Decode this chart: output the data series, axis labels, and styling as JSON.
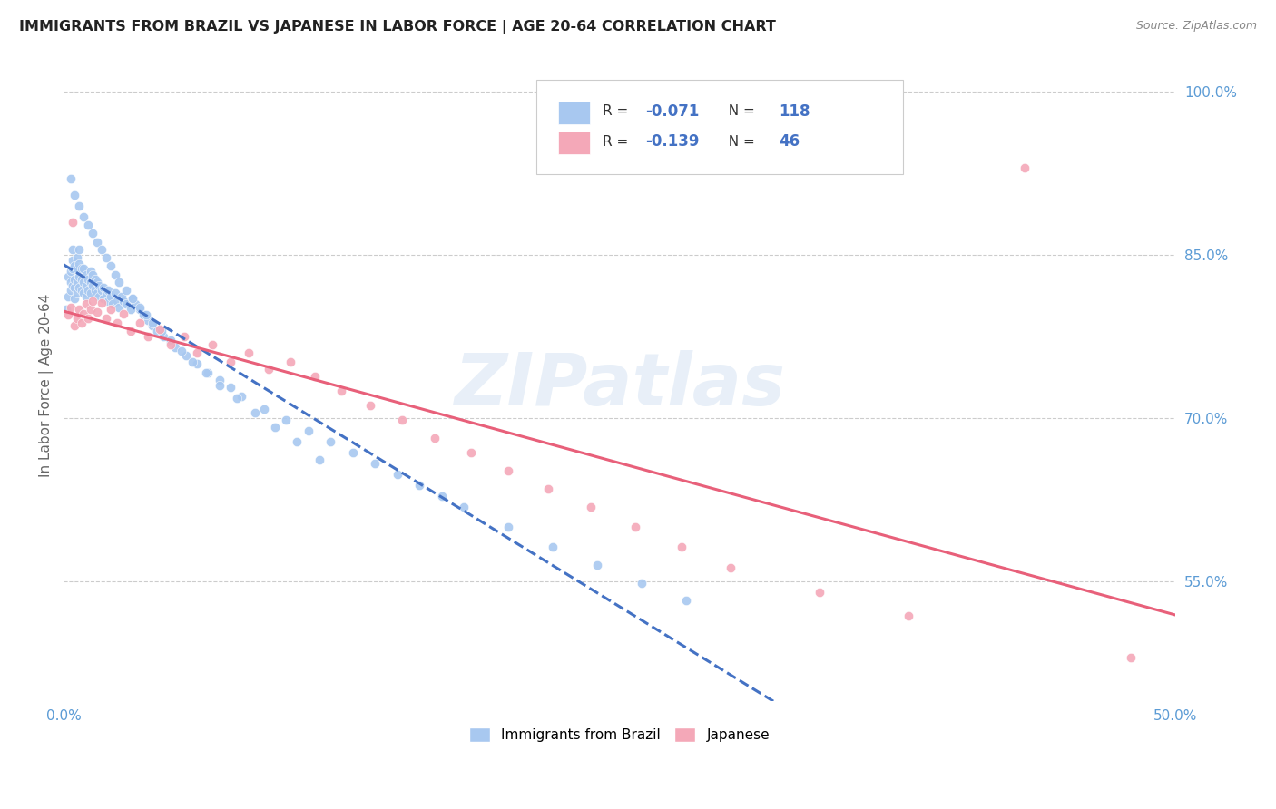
{
  "title": "IMMIGRANTS FROM BRAZIL VS JAPANESE IN LABOR FORCE | AGE 20-64 CORRELATION CHART",
  "source": "Source: ZipAtlas.com",
  "ylabel": "In Labor Force | Age 20-64",
  "xlim": [
    0.0,
    0.5
  ],
  "ylim": [
    0.44,
    1.02
  ],
  "grid_color": "#cccccc",
  "background_color": "#ffffff",
  "brazil_color": "#a8c8f0",
  "japanese_color": "#f4a8b8",
  "brazil_line_color": "#4472c4",
  "japanese_line_color": "#e8607a",
  "watermark": "ZIPatlas",
  "brazil_R": -0.071,
  "brazil_N": 118,
  "japanese_R": -0.139,
  "japanese_N": 46,
  "brazil_scatter_x": [
    0.001,
    0.002,
    0.002,
    0.003,
    0.003,
    0.003,
    0.004,
    0.004,
    0.004,
    0.004,
    0.005,
    0.005,
    0.005,
    0.005,
    0.006,
    0.006,
    0.006,
    0.006,
    0.007,
    0.007,
    0.007,
    0.007,
    0.008,
    0.008,
    0.008,
    0.009,
    0.009,
    0.009,
    0.01,
    0.01,
    0.01,
    0.011,
    0.011,
    0.012,
    0.012,
    0.012,
    0.013,
    0.013,
    0.014,
    0.014,
    0.015,
    0.015,
    0.016,
    0.016,
    0.017,
    0.018,
    0.018,
    0.019,
    0.02,
    0.02,
    0.021,
    0.022,
    0.023,
    0.024,
    0.025,
    0.026,
    0.027,
    0.028,
    0.03,
    0.031,
    0.032,
    0.034,
    0.036,
    0.038,
    0.04,
    0.042,
    0.045,
    0.048,
    0.05,
    0.055,
    0.06,
    0.065,
    0.07,
    0.075,
    0.08,
    0.09,
    0.1,
    0.11,
    0.12,
    0.13,
    0.14,
    0.15,
    0.16,
    0.17,
    0.18,
    0.2,
    0.22,
    0.24,
    0.26,
    0.28,
    0.003,
    0.005,
    0.007,
    0.009,
    0.011,
    0.013,
    0.015,
    0.017,
    0.019,
    0.021,
    0.023,
    0.025,
    0.028,
    0.031,
    0.034,
    0.037,
    0.04,
    0.044,
    0.048,
    0.053,
    0.058,
    0.064,
    0.07,
    0.078,
    0.086,
    0.095,
    0.105,
    0.115
  ],
  "brazil_scatter_y": [
    0.8,
    0.812,
    0.83,
    0.818,
    0.825,
    0.835,
    0.822,
    0.838,
    0.845,
    0.855,
    0.81,
    0.82,
    0.828,
    0.84,
    0.815,
    0.825,
    0.838,
    0.848,
    0.82,
    0.83,
    0.842,
    0.855,
    0.818,
    0.828,
    0.838,
    0.815,
    0.825,
    0.838,
    0.812,
    0.822,
    0.832,
    0.818,
    0.828,
    0.815,
    0.825,
    0.835,
    0.822,
    0.832,
    0.818,
    0.828,
    0.815,
    0.825,
    0.812,
    0.822,
    0.818,
    0.81,
    0.82,
    0.815,
    0.808,
    0.818,
    0.812,
    0.805,
    0.815,
    0.808,
    0.802,
    0.812,
    0.808,
    0.805,
    0.8,
    0.81,
    0.805,
    0.8,
    0.795,
    0.79,
    0.785,
    0.78,
    0.775,
    0.77,
    0.765,
    0.758,
    0.75,
    0.742,
    0.735,
    0.728,
    0.72,
    0.708,
    0.698,
    0.688,
    0.678,
    0.668,
    0.658,
    0.648,
    0.638,
    0.628,
    0.618,
    0.6,
    0.582,
    0.565,
    0.548,
    0.532,
    0.92,
    0.905,
    0.895,
    0.885,
    0.878,
    0.87,
    0.862,
    0.855,
    0.848,
    0.84,
    0.832,
    0.825,
    0.818,
    0.81,
    0.802,
    0.795,
    0.788,
    0.78,
    0.772,
    0.762,
    0.752,
    0.742,
    0.73,
    0.718,
    0.705,
    0.692,
    0.678,
    0.662
  ],
  "japanese_scatter_x": [
    0.002,
    0.003,
    0.004,
    0.005,
    0.006,
    0.007,
    0.008,
    0.009,
    0.01,
    0.011,
    0.012,
    0.013,
    0.015,
    0.017,
    0.019,
    0.021,
    0.024,
    0.027,
    0.03,
    0.034,
    0.038,
    0.043,
    0.048,
    0.054,
    0.06,
    0.067,
    0.075,
    0.083,
    0.092,
    0.102,
    0.113,
    0.125,
    0.138,
    0.152,
    0.167,
    0.183,
    0.2,
    0.218,
    0.237,
    0.257,
    0.278,
    0.3,
    0.34,
    0.38,
    0.432,
    0.48
  ],
  "japanese_scatter_y": [
    0.795,
    0.802,
    0.88,
    0.785,
    0.792,
    0.8,
    0.788,
    0.796,
    0.805,
    0.792,
    0.8,
    0.808,
    0.798,
    0.806,
    0.792,
    0.8,
    0.788,
    0.796,
    0.78,
    0.788,
    0.775,
    0.782,
    0.768,
    0.775,
    0.76,
    0.768,
    0.752,
    0.76,
    0.745,
    0.752,
    0.738,
    0.725,
    0.712,
    0.698,
    0.682,
    0.668,
    0.652,
    0.635,
    0.618,
    0.6,
    0.582,
    0.562,
    0.54,
    0.518,
    0.93,
    0.48
  ]
}
